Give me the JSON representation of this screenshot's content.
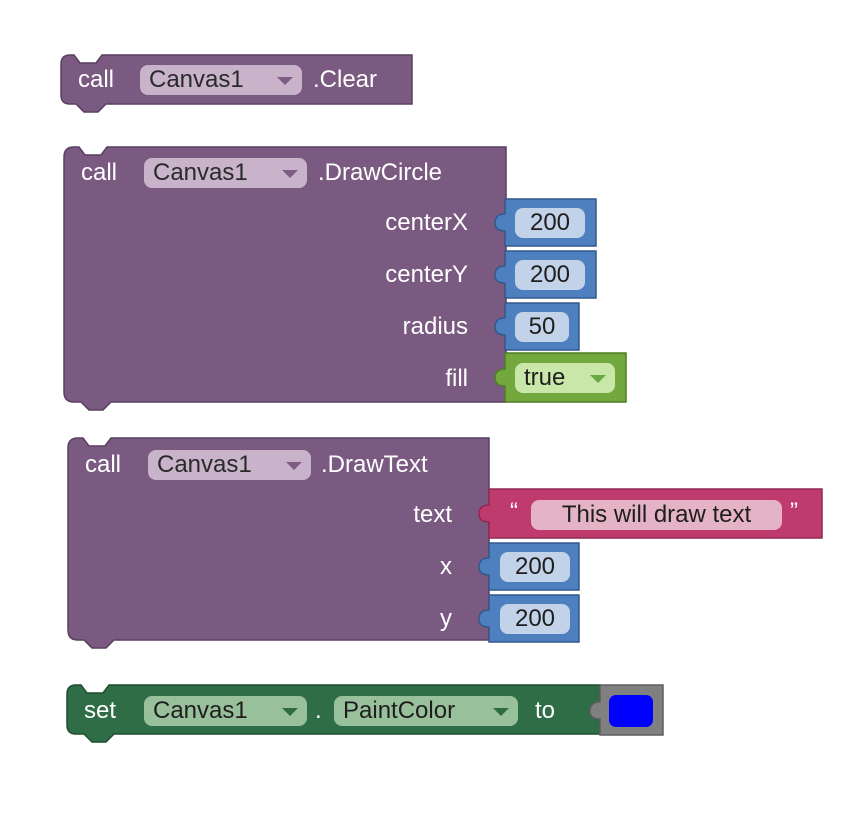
{
  "colors": {
    "procedure": "#7b5a82",
    "math": "#4e80bf",
    "logic": "#72a83e",
    "text": "#bf3b6e",
    "setter": "#2e6d45",
    "color_block": "#808080",
    "color_swatch": "#0000ff"
  },
  "blocks": {
    "clear": {
      "keyword": "call",
      "component": "Canvas1",
      "method": ".Clear"
    },
    "draw_circle": {
      "keyword": "call",
      "component": "Canvas1",
      "method": ".DrawCircle",
      "args": {
        "centerX": {
          "label": "centerX",
          "value": "200"
        },
        "centerY": {
          "label": "centerY",
          "value": "200"
        },
        "radius": {
          "label": "radius",
          "value": "50"
        },
        "fill": {
          "label": "fill",
          "value": "true"
        }
      }
    },
    "draw_text": {
      "keyword": "call",
      "component": "Canvas1",
      "method": ".DrawText",
      "args": {
        "text": {
          "label": "text",
          "open_quote": "“",
          "value": "This will draw text",
          "close_quote": "”"
        },
        "x": {
          "label": "x",
          "value": "200"
        },
        "y": {
          "label": "y",
          "value": "200"
        }
      }
    },
    "set_paint_color": {
      "keyword": "set",
      "component": "Canvas1",
      "dot": ".",
      "property": "PaintColor",
      "to": "to",
      "color_value": "#0000ff"
    }
  }
}
